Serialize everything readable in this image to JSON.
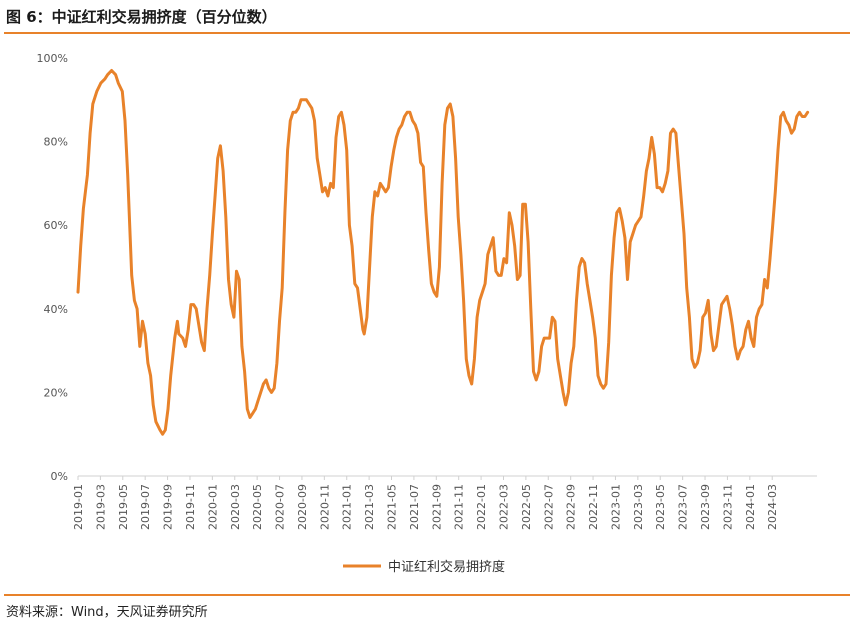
{
  "header": {
    "title": "图 6：中证红利交易拥挤度（百分位数）"
  },
  "footer": {
    "source": "资料来源：Wind，天风证券研究所"
  },
  "colors": {
    "series": "#e8822a",
    "axis": "#d0d0d0",
    "text": "#555555"
  },
  "chart_data": {
    "type": "line",
    "xlabel": "",
    "ylabel": "",
    "ylim": [
      0,
      100
    ],
    "yticks": [
      "0%",
      "20%",
      "40%",
      "60%",
      "80%",
      "100%"
    ],
    "x_tick_labels": [
      "2019-01",
      "2019-03",
      "2019-05",
      "2019-07",
      "2019-09",
      "2019-11",
      "2020-01",
      "2020-03",
      "2020-05",
      "2020-07",
      "2020-09",
      "2020-11",
      "2021-01",
      "2021-03",
      "2021-05",
      "2021-07",
      "2021-09",
      "2021-11",
      "2022-01",
      "2022-03",
      "2022-05",
      "2022-07",
      "2022-09",
      "2022-11",
      "2023-01",
      "2023-03",
      "2023-05",
      "2023-07",
      "2023-09",
      "2023-11",
      "2024-01",
      "2024-03"
    ],
    "x_range": [
      2019.0,
      2024.5
    ],
    "legend": {
      "position": "bottom-center",
      "entries": [
        "中证红利交易拥挤度"
      ]
    },
    "series": [
      {
        "name": "中证红利交易拥挤度",
        "color": "#e8822a",
        "points": [
          [
            2019.0,
            44
          ],
          [
            2019.02,
            55
          ],
          [
            2019.04,
            64
          ],
          [
            2019.07,
            72
          ],
          [
            2019.09,
            82
          ],
          [
            2019.11,
            89
          ],
          [
            2019.14,
            92
          ],
          [
            2019.17,
            94
          ],
          [
            2019.2,
            95
          ],
          [
            2019.22,
            96
          ],
          [
            2019.25,
            97
          ],
          [
            2019.28,
            96
          ],
          [
            2019.3,
            94
          ],
          [
            2019.33,
            92
          ],
          [
            2019.35,
            85
          ],
          [
            2019.37,
            72
          ],
          [
            2019.4,
            48
          ],
          [
            2019.42,
            42
          ],
          [
            2019.44,
            40
          ],
          [
            2019.46,
            31
          ],
          [
            2019.48,
            37
          ],
          [
            2019.5,
            34
          ],
          [
            2019.52,
            27
          ],
          [
            2019.54,
            24
          ],
          [
            2019.56,
            17
          ],
          [
            2019.58,
            13
          ],
          [
            2019.61,
            11
          ],
          [
            2019.63,
            10
          ],
          [
            2019.65,
            11
          ],
          [
            2019.67,
            16
          ],
          [
            2019.69,
            24
          ],
          [
            2019.72,
            33
          ],
          [
            2019.74,
            37
          ],
          [
            2019.75,
            34
          ],
          [
            2019.78,
            33
          ],
          [
            2019.8,
            31
          ],
          [
            2019.82,
            35
          ],
          [
            2019.84,
            41
          ],
          [
            2019.86,
            41
          ],
          [
            2019.88,
            40
          ],
          [
            2019.9,
            36
          ],
          [
            2019.92,
            32
          ],
          [
            2019.94,
            30
          ],
          [
            2019.96,
            40
          ],
          [
            2019.98,
            48
          ],
          [
            2020.0,
            58
          ],
          [
            2020.02,
            67
          ],
          [
            2020.04,
            76
          ],
          [
            2020.06,
            79
          ],
          [
            2020.08,
            73
          ],
          [
            2020.1,
            62
          ],
          [
            2020.12,
            47
          ],
          [
            2020.14,
            41
          ],
          [
            2020.16,
            38
          ],
          [
            2020.18,
            49
          ],
          [
            2020.2,
            47
          ],
          [
            2020.22,
            31
          ],
          [
            2020.24,
            25
          ],
          [
            2020.26,
            16
          ],
          [
            2020.28,
            14
          ],
          [
            2020.3,
            15
          ],
          [
            2020.32,
            16
          ],
          [
            2020.34,
            18
          ],
          [
            2020.36,
            20
          ],
          [
            2020.38,
            22
          ],
          [
            2020.4,
            23
          ],
          [
            2020.42,
            21
          ],
          [
            2020.44,
            20
          ],
          [
            2020.46,
            21
          ],
          [
            2020.48,
            27
          ],
          [
            2020.5,
            37
          ],
          [
            2020.52,
            45
          ],
          [
            2020.54,
            63
          ],
          [
            2020.56,
            78
          ],
          [
            2020.58,
            85
          ],
          [
            2020.6,
            87
          ],
          [
            2020.62,
            87
          ],
          [
            2020.64,
            88
          ],
          [
            2020.66,
            90
          ],
          [
            2020.68,
            90
          ],
          [
            2020.7,
            90
          ],
          [
            2020.72,
            89
          ],
          [
            2020.74,
            88
          ],
          [
            2020.76,
            85
          ],
          [
            2020.78,
            76
          ],
          [
            2020.8,
            72
          ],
          [
            2020.82,
            68
          ],
          [
            2020.84,
            69
          ],
          [
            2020.86,
            67
          ],
          [
            2020.88,
            70
          ],
          [
            2020.9,
            69
          ],
          [
            2020.92,
            81
          ],
          [
            2020.94,
            86
          ],
          [
            2020.96,
            87
          ],
          [
            2020.98,
            84
          ],
          [
            2021.0,
            78
          ],
          [
            2021.02,
            60
          ],
          [
            2021.04,
            55
          ],
          [
            2021.06,
            46
          ],
          [
            2021.08,
            45
          ],
          [
            2021.1,
            40
          ],
          [
            2021.12,
            35
          ],
          [
            2021.13,
            34
          ],
          [
            2021.15,
            38
          ],
          [
            2021.17,
            50
          ],
          [
            2021.19,
            62
          ],
          [
            2021.21,
            68
          ],
          [
            2021.23,
            67
          ],
          [
            2021.25,
            70
          ],
          [
            2021.27,
            69
          ],
          [
            2021.29,
            68
          ],
          [
            2021.31,
            69
          ],
          [
            2021.33,
            74
          ],
          [
            2021.35,
            78
          ],
          [
            2021.37,
            81
          ],
          [
            2021.39,
            83
          ],
          [
            2021.41,
            84
          ],
          [
            2021.43,
            86
          ],
          [
            2021.45,
            87
          ],
          [
            2021.47,
            87
          ],
          [
            2021.49,
            85
          ],
          [
            2021.51,
            84
          ],
          [
            2021.53,
            82
          ],
          [
            2021.55,
            75
          ],
          [
            2021.57,
            74
          ],
          [
            2021.59,
            63
          ],
          [
            2021.61,
            54
          ],
          [
            2021.63,
            46
          ],
          [
            2021.65,
            44
          ],
          [
            2021.67,
            43
          ],
          [
            2021.69,
            50
          ],
          [
            2021.71,
            70
          ],
          [
            2021.73,
            84
          ],
          [
            2021.75,
            88
          ],
          [
            2021.77,
            89
          ],
          [
            2021.79,
            86
          ],
          [
            2021.81,
            76
          ],
          [
            2021.83,
            62
          ],
          [
            2021.85,
            53
          ],
          [
            2021.87,
            42
          ],
          [
            2021.89,
            28
          ],
          [
            2021.91,
            24
          ],
          [
            2021.93,
            22
          ],
          [
            2021.95,
            28
          ],
          [
            2021.97,
            38
          ],
          [
            2021.99,
            42
          ],
          [
            2022.01,
            44
          ],
          [
            2022.03,
            46
          ],
          [
            2022.05,
            53
          ],
          [
            2022.07,
            55
          ],
          [
            2022.09,
            57
          ],
          [
            2022.11,
            49
          ],
          [
            2022.13,
            48
          ],
          [
            2022.15,
            48
          ],
          [
            2022.17,
            52
          ],
          [
            2022.19,
            51
          ],
          [
            2022.21,
            63
          ],
          [
            2022.23,
            60
          ],
          [
            2022.25,
            55
          ],
          [
            2022.27,
            47
          ],
          [
            2022.29,
            48
          ],
          [
            2022.31,
            65
          ],
          [
            2022.33,
            65
          ],
          [
            2022.35,
            56
          ],
          [
            2022.37,
            40
          ],
          [
            2022.39,
            25
          ],
          [
            2022.41,
            23
          ],
          [
            2022.43,
            25
          ],
          [
            2022.45,
            31
          ],
          [
            2022.47,
            33
          ],
          [
            2022.49,
            33
          ],
          [
            2022.51,
            33
          ],
          [
            2022.53,
            38
          ],
          [
            2022.55,
            37
          ],
          [
            2022.57,
            28
          ],
          [
            2022.59,
            24
          ],
          [
            2022.61,
            20
          ],
          [
            2022.63,
            17
          ],
          [
            2022.65,
            20
          ],
          [
            2022.67,
            27
          ],
          [
            2022.69,
            31
          ],
          [
            2022.71,
            42
          ],
          [
            2022.73,
            50
          ],
          [
            2022.75,
            52
          ],
          [
            2022.77,
            51
          ],
          [
            2022.79,
            46
          ],
          [
            2022.81,
            42
          ],
          [
            2022.83,
            38
          ],
          [
            2022.85,
            33
          ],
          [
            2022.87,
            24
          ],
          [
            2022.89,
            22
          ],
          [
            2022.91,
            21
          ],
          [
            2022.93,
            22
          ],
          [
            2022.95,
            32
          ],
          [
            2022.97,
            48
          ],
          [
            2022.99,
            57
          ],
          [
            2023.01,
            63
          ],
          [
            2023.03,
            64
          ],
          [
            2023.05,
            61
          ],
          [
            2023.07,
            57
          ],
          [
            2023.09,
            47
          ],
          [
            2023.11,
            56
          ],
          [
            2023.13,
            58
          ],
          [
            2023.15,
            60
          ],
          [
            2023.17,
            61
          ],
          [
            2023.19,
            62
          ],
          [
            2023.21,
            67
          ],
          [
            2023.23,
            73
          ],
          [
            2023.25,
            76
          ],
          [
            2023.27,
            81
          ],
          [
            2023.29,
            77
          ],
          [
            2023.31,
            69
          ],
          [
            2023.33,
            69
          ],
          [
            2023.35,
            68
          ],
          [
            2023.37,
            70
          ],
          [
            2023.39,
            73
          ],
          [
            2023.41,
            82
          ],
          [
            2023.43,
            83
          ],
          [
            2023.45,
            82
          ],
          [
            2023.47,
            74
          ],
          [
            2023.49,
            66
          ],
          [
            2023.51,
            58
          ],
          [
            2023.53,
            45
          ],
          [
            2023.55,
            38
          ],
          [
            2023.57,
            28
          ],
          [
            2023.59,
            26
          ],
          [
            2023.61,
            27
          ],
          [
            2023.63,
            30
          ],
          [
            2023.65,
            38
          ],
          [
            2023.67,
            39
          ],
          [
            2023.69,
            42
          ],
          [
            2023.71,
            34
          ],
          [
            2023.73,
            30
          ],
          [
            2023.75,
            31
          ],
          [
            2023.77,
            36
          ],
          [
            2023.79,
            41
          ],
          [
            2023.81,
            42
          ],
          [
            2023.83,
            43
          ],
          [
            2023.85,
            40
          ],
          [
            2023.87,
            36
          ],
          [
            2023.89,
            31
          ],
          [
            2023.91,
            28
          ],
          [
            2023.93,
            30
          ],
          [
            2023.95,
            31
          ],
          [
            2023.97,
            35
          ],
          [
            2023.99,
            37
          ],
          [
            2024.01,
            33
          ],
          [
            2024.03,
            31
          ],
          [
            2024.05,
            38
          ],
          [
            2024.07,
            40
          ],
          [
            2024.09,
            41
          ],
          [
            2024.11,
            47
          ],
          [
            2024.13,
            45
          ],
          [
            2024.15,
            52
          ],
          [
            2024.17,
            60
          ],
          [
            2024.19,
            68
          ],
          [
            2024.21,
            78
          ],
          [
            2024.23,
            86
          ],
          [
            2024.25,
            87
          ],
          [
            2024.27,
            85
          ],
          [
            2024.29,
            84
          ],
          [
            2024.31,
            82
          ],
          [
            2024.33,
            83
          ],
          [
            2024.35,
            86
          ],
          [
            2024.37,
            87
          ],
          [
            2024.39,
            86
          ],
          [
            2024.41,
            86
          ],
          [
            2024.43,
            87
          ]
        ]
      }
    ]
  }
}
